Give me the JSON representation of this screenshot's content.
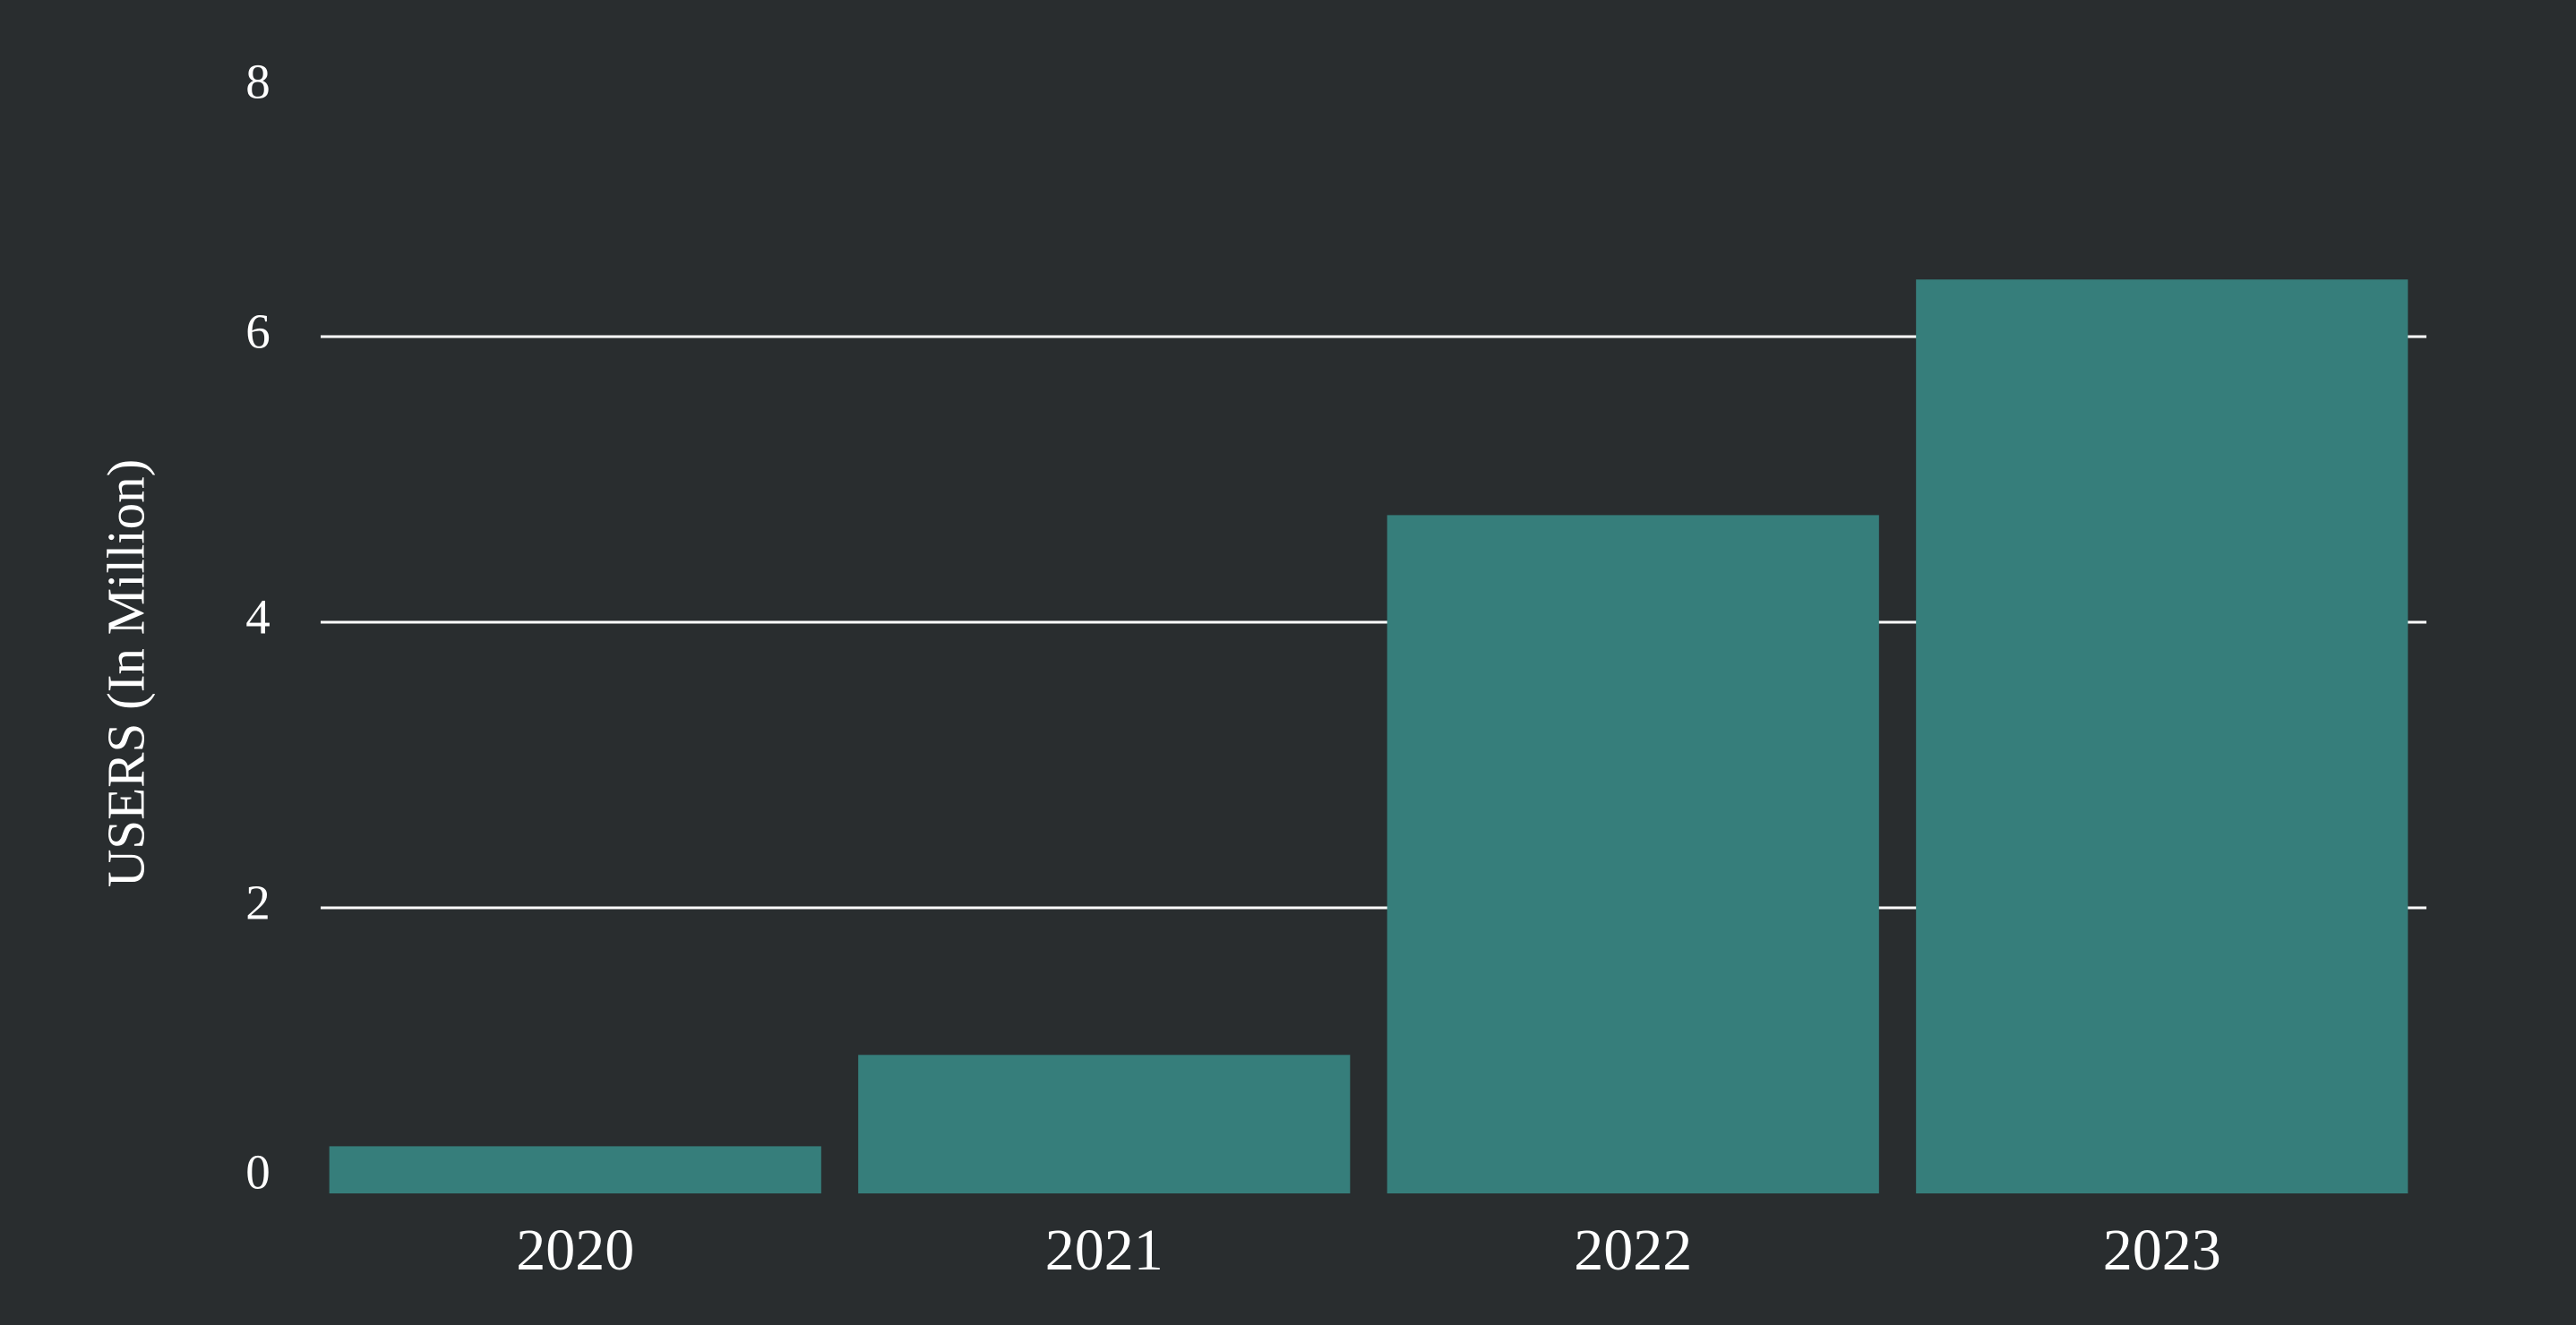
{
  "chart_data": {
    "type": "bar",
    "y_label": "USERS (In Million)",
    "categories": [
      "2020",
      "2021",
      "2022",
      "2023"
    ],
    "values": [
      0.33,
      0.97,
      4.75,
      6.4
    ],
    "color": "#367e7b",
    "ylim": [
      0,
      8
    ],
    "yticks": [
      0,
      2,
      4,
      6,
      8
    ],
    "grid": true
  }
}
